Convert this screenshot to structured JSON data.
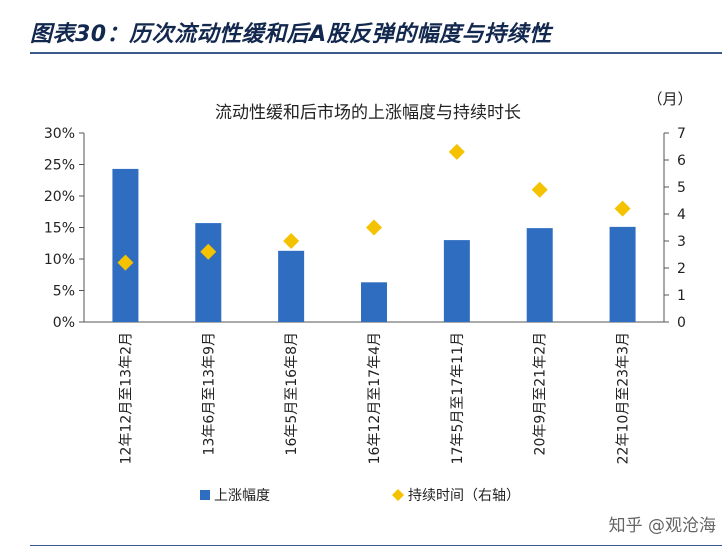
{
  "figure_title": "图表30：历次流动性缓和后A股反弹的幅度与持续性",
  "watermark": "知乎 @观沧海",
  "colors": {
    "bar": "#2e6dc0",
    "diamond": "#f5c200",
    "title": "#13284e",
    "rule": "#3a5a8a"
  },
  "chart_data": {
    "type": "bar",
    "title": "流动性缓和后市场的上涨幅度与持续时长",
    "right_axis_unit": "（月）",
    "categories": [
      "12年12月至13年2月",
      "13年6月至13年9月",
      "16年5月至16年8月",
      "16年12月至17年4月",
      "17年5月至17年11月",
      "20年9月至21年2月",
      "22年10月至23年3月"
    ],
    "series": [
      {
        "name": "上涨幅度",
        "type": "bar",
        "axis": "left",
        "values": [
          0.243,
          0.157,
          0.113,
          0.063,
          0.13,
          0.149,
          0.151
        ]
      },
      {
        "name": "持续时间（右轴）",
        "type": "scatter",
        "axis": "right",
        "values": [
          2.2,
          2.6,
          3.0,
          3.5,
          6.3,
          4.9,
          4.2
        ]
      }
    ],
    "left_axis": {
      "ylim": [
        0,
        0.3
      ],
      "ticks": [
        "0%",
        "5%",
        "10%",
        "15%",
        "20%",
        "25%",
        "30%"
      ]
    },
    "right_axis": {
      "ylim": [
        0,
        7
      ],
      "ticks": [
        "0",
        "1",
        "2",
        "3",
        "4",
        "5",
        "6",
        "7"
      ]
    },
    "grid": false,
    "legend_position": "bottom"
  }
}
